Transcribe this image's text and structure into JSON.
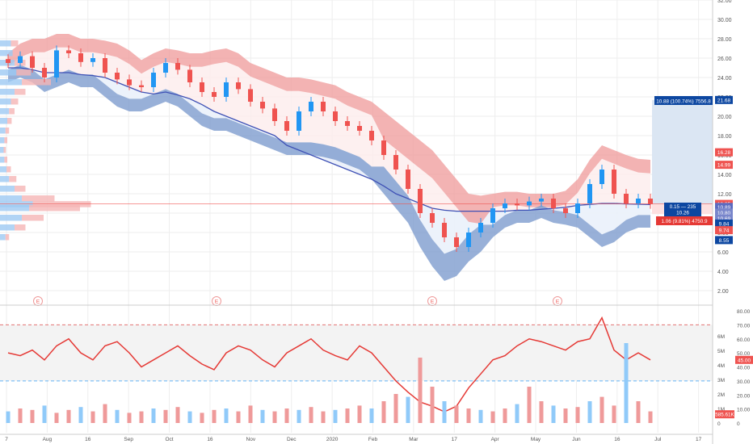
{
  "colors": {
    "up": "#2196f3",
    "down": "#ef5350",
    "upper_band": "#ef9a9a",
    "lower_band": "#7e9cce",
    "vwap": "#3f51b5",
    "rsi": "#e53935",
    "hline": "#e57373",
    "projection_fill": "#dbe6f3",
    "projection_label": "#0d47a1",
    "grid": "#eeeeee",
    "price_line": "#ef5350"
  },
  "chart_data": [
    {
      "type": "candlestick",
      "yscale": "linear",
      "ylim": [
        0,
        32
      ],
      "price_ticks": [
        "32.00",
        "30.00",
        "28.00",
        "26.00",
        "24.00",
        "22.00",
        "20.00",
        "18.00",
        "16.00",
        "14.00",
        "12.00",
        "10.00",
        "8.00",
        "6.00",
        "4.00",
        "2.00"
      ],
      "x_labels": [
        "7",
        "Aug",
        "16",
        "Sep",
        "Oct",
        "16",
        "Nov",
        "Dec",
        "2020",
        "Feb",
        "Mar",
        "17",
        "Apr",
        "May",
        "Jun",
        "16",
        "Jul",
        "17"
      ],
      "earnings_markers": [
        "E",
        "E",
        "E",
        "E"
      ],
      "series": [
        {
          "name": "close",
          "values": [
            25.5,
            26.2,
            25.0,
            24.0,
            26.8,
            26.5,
            25.6,
            26.0,
            24.5,
            23.8,
            23.2,
            23.0,
            24.5,
            25.5,
            24.8,
            23.5,
            22.5,
            22.0,
            23.5,
            22.8,
            21.5,
            20.8,
            19.5,
            18.5,
            20.5,
            21.5,
            20.5,
            19.5,
            19.0,
            18.5,
            17.5,
            16.0,
            14.5,
            12.5,
            10.0,
            9.0,
            7.5,
            6.5,
            8.0,
            9.0,
            10.5,
            11.0,
            10.8,
            11.2,
            11.5,
            10.5,
            10.0,
            11.0,
            13.0,
            14.5,
            12.0,
            11.0,
            11.5,
            10.95
          ]
        },
        {
          "name": "upper_band",
          "values": [
            26.5,
            27.5,
            28.0,
            28.0,
            28.5,
            28.5,
            28.0,
            28.0,
            27.8,
            27.5,
            26.8,
            25.8,
            26.5,
            27.0,
            26.8,
            26.5,
            26.5,
            26.8,
            27.0,
            26.5,
            25.5,
            25.0,
            24.5,
            24.0,
            24.0,
            23.8,
            23.5,
            23.2,
            22.5,
            22.0,
            21.5,
            20.5,
            19.5,
            18.5,
            17.5,
            16.5,
            15.0,
            13.5,
            12.0,
            11.8,
            12.0,
            12.2,
            12.2,
            12.0,
            12.0,
            12.0,
            12.3,
            13.5,
            15.5,
            17.0,
            16.5,
            16.0,
            15.6,
            15.5
          ]
        },
        {
          "name": "lower_band",
          "values": [
            23.5,
            24.0,
            23.5,
            22.5,
            23.0,
            23.5,
            23.0,
            23.0,
            22.0,
            21.0,
            20.5,
            20.5,
            21.0,
            21.5,
            21.0,
            20.0,
            19.0,
            18.5,
            18.5,
            18.0,
            17.5,
            17.0,
            16.5,
            16.0,
            16.0,
            16.0,
            15.8,
            15.5,
            15.0,
            14.5,
            13.5,
            12.0,
            10.5,
            9.0,
            6.5,
            4.5,
            3.0,
            3.5,
            5.0,
            6.0,
            7.5,
            8.5,
            9.0,
            9.0,
            9.5,
            9.0,
            8.8,
            8.5,
            7.5,
            6.5,
            7.0,
            8.0,
            8.5,
            8.5
          ]
        },
        {
          "name": "vwap",
          "values": [
            25.0,
            25.0,
            24.8,
            24.5,
            24.5,
            24.5,
            24.3,
            24.2,
            24.0,
            23.5,
            23.0,
            22.5,
            22.3,
            22.5,
            22.2,
            21.8,
            21.2,
            20.5,
            20.0,
            19.5,
            19.0,
            18.5,
            18.0,
            17.0,
            16.5,
            16.0,
            15.5,
            15.0,
            14.5,
            14.0,
            13.5,
            12.8,
            12.0,
            11.5,
            11.0,
            10.5,
            10.3,
            10.2,
            10.2,
            10.2,
            10.2,
            10.2,
            10.3,
            10.3,
            10.4,
            10.5,
            10.6,
            10.8,
            10.9,
            11.0,
            11.0,
            10.95,
            10.92,
            10.89
          ]
        }
      ],
      "volume_profile": {
        "levels": [
          27.5,
          26.5,
          25.5,
          24.5,
          23.5,
          22.5,
          21.5,
          20.5,
          19.5,
          18.5,
          17.5,
          16.5,
          15.5,
          14.5,
          13.5,
          12.5,
          11.5,
          10.9,
          10.5,
          9.5,
          8.5,
          7.5
        ],
        "buy": [
          30,
          35,
          40,
          45,
          60,
          40,
          30,
          25,
          20,
          15,
          12,
          10,
          12,
          18,
          25,
          40,
          60,
          90,
          80,
          60,
          40,
          15
        ],
        "sell": [
          20,
          25,
          30,
          40,
          80,
          30,
          20,
          15,
          12,
          10,
          8,
          6,
          8,
          12,
          20,
          30,
          90,
          160,
          140,
          60,
          30,
          10
        ]
      },
      "price_labels": [
        {
          "text": "21.68",
          "value": 21.68,
          "color": "#0d47a1"
        },
        {
          "text": "16.28",
          "value": 16.28,
          "color": "#ef5350"
        },
        {
          "text": "14.99",
          "value": 14.99,
          "color": "#ef5350"
        },
        {
          "text": "10.95",
          "value": 10.95,
          "color": "#ef5350"
        },
        {
          "text": "10.89",
          "value": 10.89,
          "color": "#5c6bc0"
        },
        {
          "text": "10.80",
          "value": 10.8,
          "color": "#7986cb"
        },
        {
          "text": "10.69",
          "value": 10.69,
          "color": "#7986cb"
        },
        {
          "text": "9.84",
          "value": 9.84,
          "color": "#0d47a1"
        },
        {
          "text": "9.74",
          "value": 9.74,
          "color": "#ef5350"
        },
        {
          "text": "8.55",
          "value": 8.55,
          "color": "#0d47a1"
        }
      ],
      "annotations": {
        "projection_top": "10.88 (100.74%) 7556.8",
        "range_line1": "0.15 — 235",
        "range_line2": "10.26",
        "projection_bottom": "1.06 (9.81%) 4750.9"
      }
    },
    {
      "type": "line",
      "series": [
        {
          "name": "RSI",
          "values": [
            50,
            48,
            52,
            45,
            55,
            60,
            50,
            45,
            55,
            58,
            50,
            40,
            45,
            50,
            55,
            48,
            42,
            38,
            50,
            55,
            52,
            45,
            40,
            50,
            55,
            60,
            52,
            48,
            45,
            55,
            50,
            40,
            30,
            22,
            15,
            12,
            8,
            12,
            25,
            35,
            45,
            48,
            55,
            60,
            58,
            55,
            52,
            58,
            60,
            75,
            52,
            45,
            50,
            45
          ]
        }
      ],
      "ylim": [
        0,
        80
      ],
      "ticks": [
        "80.00",
        "70.00",
        "60.00",
        "50.00",
        "40.00",
        "30.00",
        "20.00",
        "10.00",
        "0"
      ],
      "levels": [
        70,
        30
      ],
      "value_label": "45.00"
    },
    {
      "type": "bar",
      "series": [
        {
          "name": "Volume",
          "values": [
            0.8,
            1.0,
            0.9,
            1.2,
            0.7,
            0.9,
            1.1,
            0.8,
            1.3,
            0.9,
            0.7,
            0.8,
            1.0,
            0.9,
            1.1,
            0.8,
            0.7,
            0.9,
            1.0,
            0.8,
            1.2,
            0.9,
            0.8,
            1.0,
            0.9,
            1.1,
            0.8,
            0.9,
            1.0,
            1.2,
            1.0,
            1.5,
            2.0,
            1.8,
            4.5,
            2.5,
            1.5,
            1.2,
            1.0,
            0.9,
            0.8,
            1.0,
            1.3,
            2.5,
            1.5,
            1.2,
            1.0,
            1.1,
            1.5,
            1.8,
            1.2,
            5.5,
            1.5,
            0.8
          ]
        }
      ],
      "ticks": [
        "6M",
        "5M",
        "4M",
        "3M",
        "2M",
        "1M",
        "0"
      ],
      "value_label": "585.61K"
    }
  ]
}
